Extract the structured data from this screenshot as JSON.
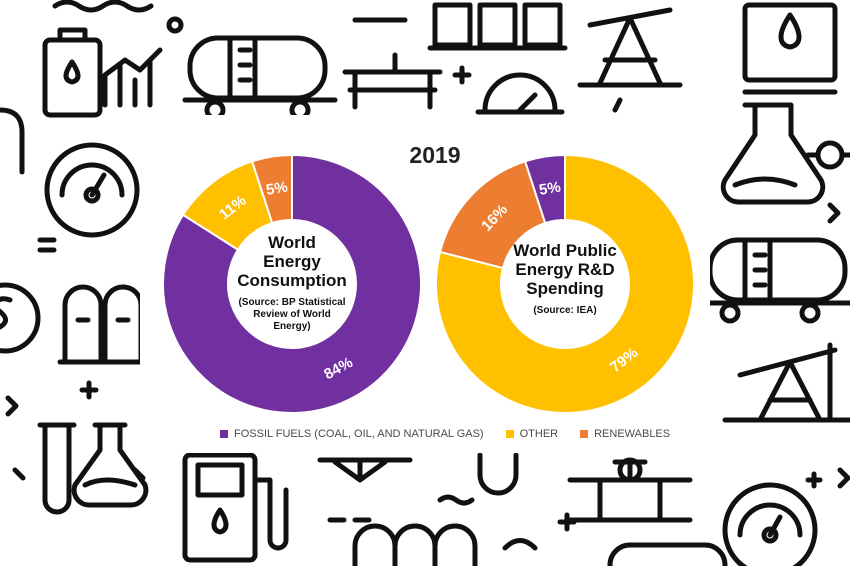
{
  "chart_data": {
    "type": "pie",
    "title": "2019",
    "legend": {
      "placement": "bottom",
      "entries": [
        {
          "label": "FOSSIL FUELS (COAL, OIL, AND NATURAL GAS)",
          "color": "#7030A0"
        },
        {
          "label": "OTHER",
          "color": "#FFC000"
        },
        {
          "label": "RENEWABLES",
          "color": "#ED7D31"
        }
      ]
    },
    "charts": [
      {
        "center_title": [
          "World",
          "Energy",
          "Consumption"
        ],
        "center_source": [
          "(Source: BP Statistical",
          "Review of World",
          "Energy)"
        ],
        "slices": [
          {
            "category": "FOSSIL FUELS (COAL, OIL, AND NATURAL GAS)",
            "value": 84,
            "label": "84%",
            "color": "#7030A0"
          },
          {
            "category": "OTHER",
            "value": 11,
            "label": "11%",
            "color": "#FFC000"
          },
          {
            "category": "RENEWABLES",
            "value": 5,
            "label": "5%",
            "color": "#ED7D31"
          }
        ]
      },
      {
        "center_title": [
          "World Public",
          "Energy R&D",
          "Spending"
        ],
        "center_source": [
          "(Source: IEA)"
        ],
        "slices": [
          {
            "category": "OTHER",
            "value": 79,
            "label": "79%",
            "color": "#FFC000"
          },
          {
            "category": "RENEWABLES",
            "value": 16,
            "label": "16%",
            "color": "#ED7D31"
          },
          {
            "category": "FOSSIL FUELS (COAL, OIL, AND NATURAL GAS)",
            "value": 5,
            "label": "5%",
            "color": "#7030A0"
          }
        ]
      }
    ]
  }
}
